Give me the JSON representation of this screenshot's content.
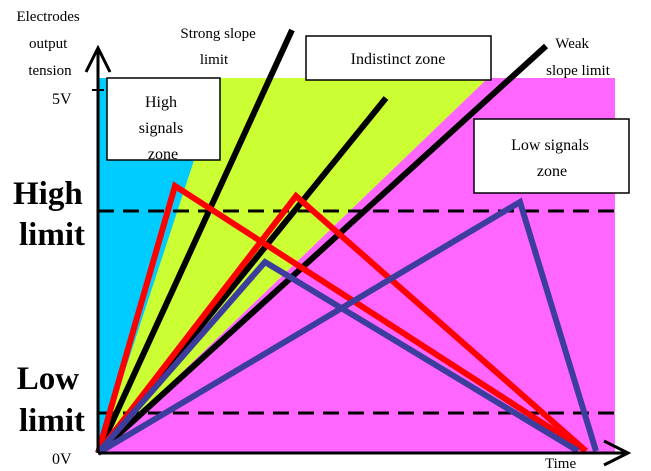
{
  "axes": {
    "y_title": [
      "Electrodes",
      "output",
      "tension"
    ],
    "x_title": "Time",
    "y_top_label": "5V",
    "y_bottom_label": "0V"
  },
  "limits": {
    "high": [
      "High",
      "limit"
    ],
    "low": [
      "Low",
      "limit"
    ]
  },
  "zones": {
    "high_signals": [
      "High",
      "signals",
      "zone"
    ],
    "indistinct": "Indistinct zone",
    "low_signals": [
      "Low signals",
      "zone"
    ]
  },
  "slopes": {
    "strong": [
      "Strong slope",
      "limit"
    ],
    "weak": [
      "Weak",
      "slope limit"
    ]
  },
  "colors": {
    "high_zone": "#00ccff",
    "indistinct_zone": "#ccff33",
    "low_zone": "#ff66ff",
    "red_signal": "#ff0000",
    "blue_signal": "#3d3d9e",
    "slope_line": "#000000"
  }
}
